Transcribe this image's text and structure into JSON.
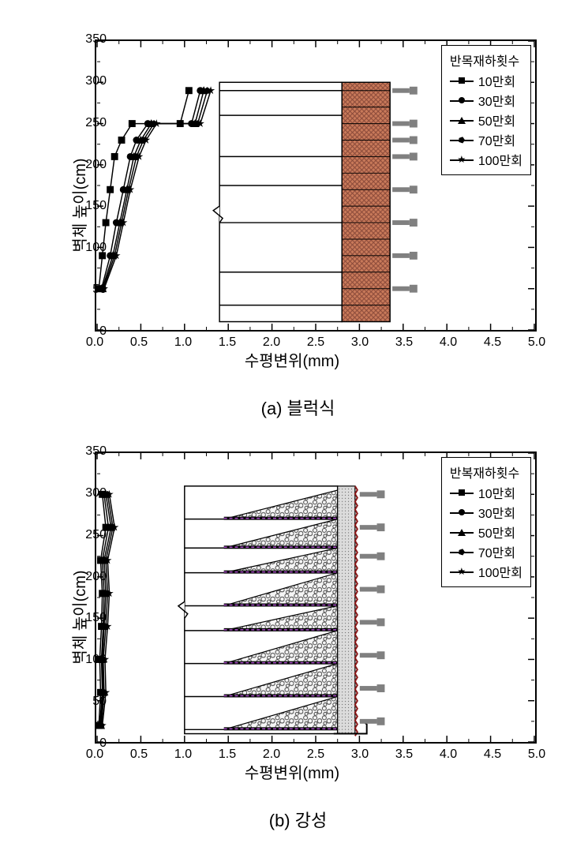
{
  "charts": [
    {
      "id": "chart-a",
      "caption": "(a) 블럭식",
      "x_label": "수평변위(mm)",
      "y_label": "벽체 높이(cm)",
      "xlim": [
        0,
        5.0
      ],
      "ylim": [
        0,
        350
      ],
      "xticks": [
        0.0,
        0.5,
        1.0,
        1.5,
        2.0,
        2.5,
        3.0,
        3.5,
        4.0,
        4.5,
        5.0
      ],
      "yticks": [
        0,
        50,
        100,
        150,
        200,
        250,
        300,
        350
      ],
      "tick_fontsize": 16,
      "label_fontsize": 20,
      "line_color": "#000000",
      "line_width": 1.5,
      "background_color": "#ffffff",
      "legend": {
        "title": "반목재하횟수",
        "position": "top-right",
        "items": [
          {
            "label": "10만회",
            "marker": "square"
          },
          {
            "label": "30만회",
            "marker": "circle"
          },
          {
            "label": "50만회",
            "marker": "triangle"
          },
          {
            "label": "70만회",
            "marker": "pentagon"
          },
          {
            "label": "100만회",
            "marker": "star"
          }
        ]
      },
      "series": [
        {
          "name": "10만회",
          "marker": "square",
          "x": [
            0.02,
            0.06,
            0.1,
            0.15,
            0.2,
            0.28,
            0.4,
            0.95,
            1.05
          ],
          "y": [
            50,
            90,
            130,
            170,
            210,
            230,
            250,
            250,
            290
          ]
        },
        {
          "name": "30만회",
          "marker": "circle",
          "x": [
            0.05,
            0.15,
            0.22,
            0.3,
            0.38,
            0.45,
            0.58,
            1.08,
            1.18
          ],
          "y": [
            50,
            90,
            130,
            170,
            210,
            230,
            250,
            250,
            290
          ]
        },
        {
          "name": "50만회",
          "marker": "triangle",
          "x": [
            0.06,
            0.18,
            0.26,
            0.34,
            0.42,
            0.5,
            0.62,
            1.12,
            1.22
          ],
          "y": [
            50,
            90,
            130,
            170,
            210,
            230,
            250,
            250,
            290
          ]
        },
        {
          "name": "70만회",
          "marker": "pentagon",
          "x": [
            0.07,
            0.2,
            0.28,
            0.36,
            0.45,
            0.53,
            0.65,
            1.15,
            1.26
          ],
          "y": [
            50,
            90,
            130,
            170,
            210,
            230,
            250,
            250,
            290
          ]
        },
        {
          "name": "100만회",
          "marker": "star",
          "x": [
            0.08,
            0.22,
            0.3,
            0.38,
            0.48,
            0.56,
            0.68,
            1.18,
            1.3
          ],
          "y": [
            50,
            90,
            130,
            170,
            210,
            230,
            250,
            250,
            290
          ]
        }
      ],
      "diagram": {
        "type": "block-wall",
        "x_range_mm": [
          1.4,
          3.65
        ],
        "y_range_cm": [
          10,
          300
        ],
        "wall_x_range_mm": [
          2.8,
          3.35
        ],
        "wall_color": "#c97a5a",
        "wall_hatch_color": "#8b4a3a",
        "block_lines_cm": [
          30,
          50,
          70,
          90,
          110,
          130,
          150,
          170,
          190,
          210,
          230,
          250,
          270,
          290
        ],
        "reinforcement_y_cm": [
          30,
          70,
          130,
          175,
          210,
          260,
          290
        ],
        "sensor_y_cm": [
          50,
          90,
          130,
          170,
          210,
          230,
          250,
          290
        ],
        "sensor_color": "#808080",
        "break_y_cm": [
          130,
          150
        ]
      }
    },
    {
      "id": "chart-b",
      "caption": "(b) 강성",
      "x_label": "수평변위(mm)",
      "y_label": "벽체 높이(cm)",
      "xlim": [
        0,
        5.0
      ],
      "ylim": [
        0,
        350
      ],
      "xticks": [
        0.0,
        0.5,
        1.0,
        1.5,
        2.0,
        2.5,
        3.0,
        3.5,
        4.0,
        4.5,
        5.0
      ],
      "yticks": [
        0,
        50,
        100,
        150,
        200,
        250,
        300,
        350
      ],
      "tick_fontsize": 16,
      "label_fontsize": 20,
      "line_color": "#000000",
      "line_width": 1.5,
      "background_color": "#ffffff",
      "legend": {
        "title": "반복재하횟수",
        "position": "top-right",
        "items": [
          {
            "label": "10만회",
            "marker": "square"
          },
          {
            "label": "30만회",
            "marker": "circle"
          },
          {
            "label": "50만회",
            "marker": "triangle"
          },
          {
            "label": "70만회",
            "marker": "pentagon"
          },
          {
            "label": "100만회",
            "marker": "star"
          }
        ]
      },
      "series": [
        {
          "name": "10만회",
          "marker": "square",
          "x": [
            0.02,
            0.04,
            0.03,
            0.05,
            0.06,
            0.04,
            0.1,
            0.06
          ],
          "y": [
            20,
            60,
            100,
            140,
            180,
            220,
            260,
            300
          ]
        },
        {
          "name": "30만회",
          "marker": "circle",
          "x": [
            0.03,
            0.06,
            0.05,
            0.07,
            0.08,
            0.06,
            0.13,
            0.08
          ],
          "y": [
            20,
            60,
            100,
            140,
            180,
            220,
            260,
            300
          ]
        },
        {
          "name": "50만회",
          "marker": "triangle",
          "x": [
            0.04,
            0.07,
            0.06,
            0.08,
            0.1,
            0.08,
            0.16,
            0.1
          ],
          "y": [
            20,
            60,
            100,
            140,
            180,
            220,
            260,
            300
          ]
        },
        {
          "name": "70만회",
          "marker": "pentagon",
          "x": [
            0.05,
            0.08,
            0.07,
            0.1,
            0.12,
            0.1,
            0.18,
            0.12
          ],
          "y": [
            20,
            60,
            100,
            140,
            180,
            220,
            260,
            300
          ]
        },
        {
          "name": "100만회",
          "marker": "star",
          "x": [
            0.06,
            0.1,
            0.09,
            0.12,
            0.14,
            0.12,
            0.2,
            0.14
          ],
          "y": [
            20,
            60,
            100,
            140,
            180,
            220,
            260,
            300
          ]
        }
      ],
      "diagram": {
        "type": "rigid-wall",
        "x_range_mm": [
          1.0,
          3.35
        ],
        "y_range_cm": [
          10,
          310
        ],
        "wall_x_range_mm": [
          2.75,
          2.95
        ],
        "wall_fill_color": "#dcdcdc",
        "wall_edge_color": "#8b1a1a",
        "gravel_color": "#404040",
        "gravel_bg": "#f5f5f5",
        "geogrid_color": "#b050d0",
        "layer_tops_cm": [
          15,
          55,
          95,
          135,
          165,
          205,
          235,
          270,
          305
        ],
        "reinforcement_x_start_mm": 1.0,
        "sensor_y_cm": [
          25,
          65,
          105,
          145,
          185,
          225,
          260,
          300
        ],
        "sensor_color": "#808080",
        "break_y_cm": [
          150,
          170
        ]
      }
    }
  ]
}
